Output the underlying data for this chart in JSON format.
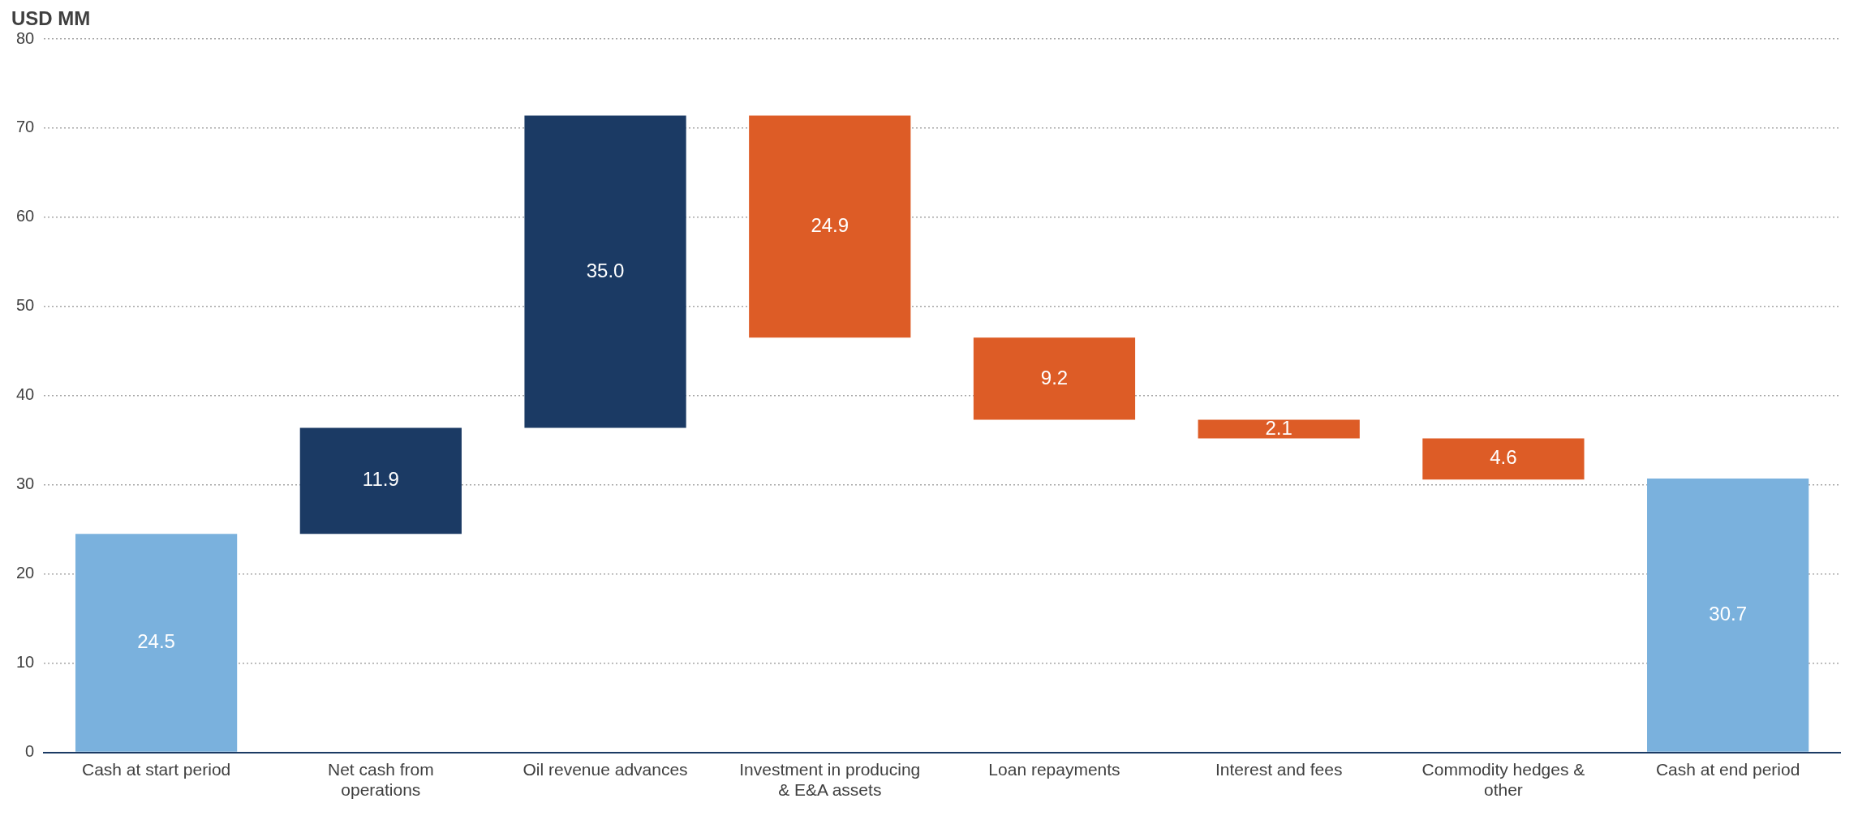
{
  "chart_data": {
    "type": "bar",
    "ylabel": "USD MM",
    "categories": [
      "Cash at start period",
      "Net cash from operations",
      "Oil revenue advances",
      "Investment in producing & E&A assets",
      "Loan repayments",
      "Interest and fees",
      "Commodity hedges & other",
      "Cash at end period"
    ],
    "values": [
      24.5,
      11.9,
      35.0,
      24.9,
      9.2,
      2.1,
      4.6,
      30.7
    ],
    "base": [
      0,
      24.5,
      36.4,
      46.5,
      37.3,
      35.2,
      30.6,
      0
    ],
    "colors": [
      "#7ab1dd",
      "#1b3a64",
      "#1b3a64",
      "#dd5c26",
      "#dd5c26",
      "#dd5c26",
      "#dd5c26",
      "#7ab1dd"
    ],
    "ylim": [
      0,
      80
    ],
    "yticks": [
      0,
      10,
      20,
      30,
      40,
      50,
      60,
      70,
      80
    ],
    "value_labels": [
      "24.5",
      "11.9",
      "35.0",
      "24.9",
      "9.2",
      "2.1",
      "4.6",
      "30.7"
    ],
    "grid": "y",
    "legend": false
  }
}
